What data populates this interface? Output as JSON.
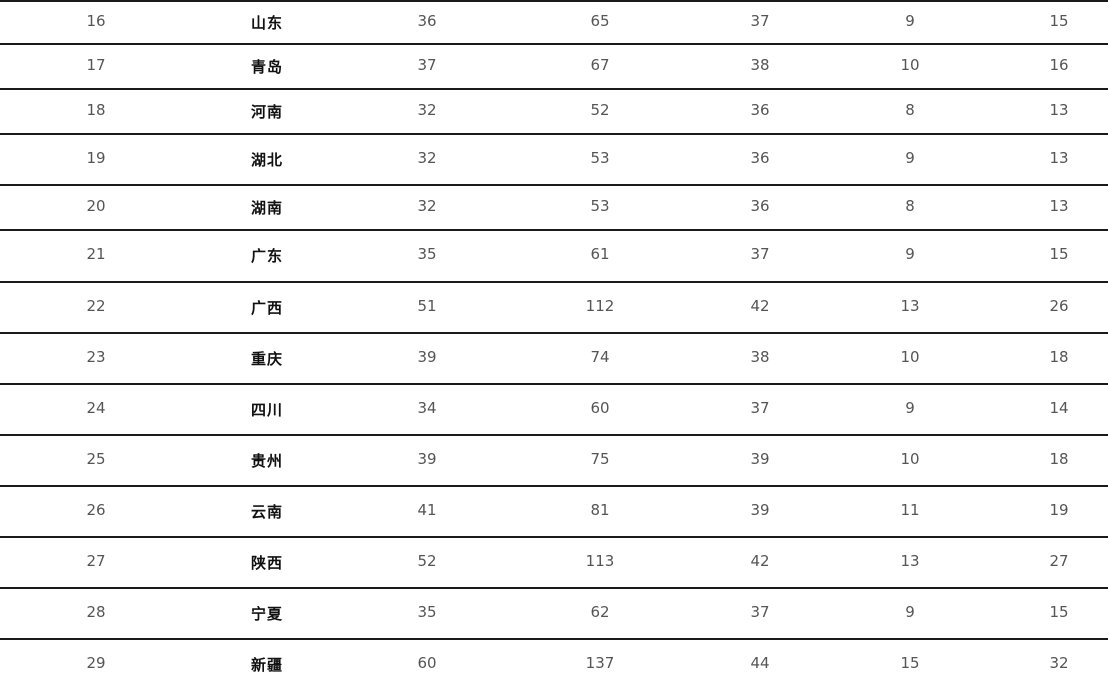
{
  "table": {
    "rows": [
      [
        "16",
        "山东",
        "36",
        "65",
        "37",
        "9",
        "15"
      ],
      [
        "17",
        "青岛",
        "37",
        "67",
        "38",
        "10",
        "16"
      ],
      [
        "18",
        "河南",
        "32",
        "52",
        "36",
        "8",
        "13"
      ],
      [
        "19",
        "湖北",
        "32",
        "53",
        "36",
        "9",
        "13"
      ],
      [
        "20",
        "湖南",
        "32",
        "53",
        "36",
        "8",
        "13"
      ],
      [
        "21",
        "广东",
        "35",
        "61",
        "37",
        "9",
        "15"
      ],
      [
        "22",
        "广西",
        "51",
        "112",
        "42",
        "13",
        "26"
      ],
      [
        "23",
        "重庆",
        "39",
        "74",
        "38",
        "10",
        "18"
      ],
      [
        "24",
        "四川",
        "34",
        "60",
        "37",
        "9",
        "14"
      ],
      [
        "25",
        "贵州",
        "39",
        "75",
        "39",
        "10",
        "18"
      ],
      [
        "26",
        "云南",
        "41",
        "81",
        "39",
        "11",
        "19"
      ],
      [
        "27",
        "陕西",
        "52",
        "113",
        "42",
        "13",
        "27"
      ],
      [
        "28",
        "宁夏",
        "35",
        "62",
        "37",
        "9",
        "15"
      ],
      [
        "29",
        "新疆",
        "60",
        "137",
        "44",
        "15",
        "32"
      ]
    ]
  }
}
